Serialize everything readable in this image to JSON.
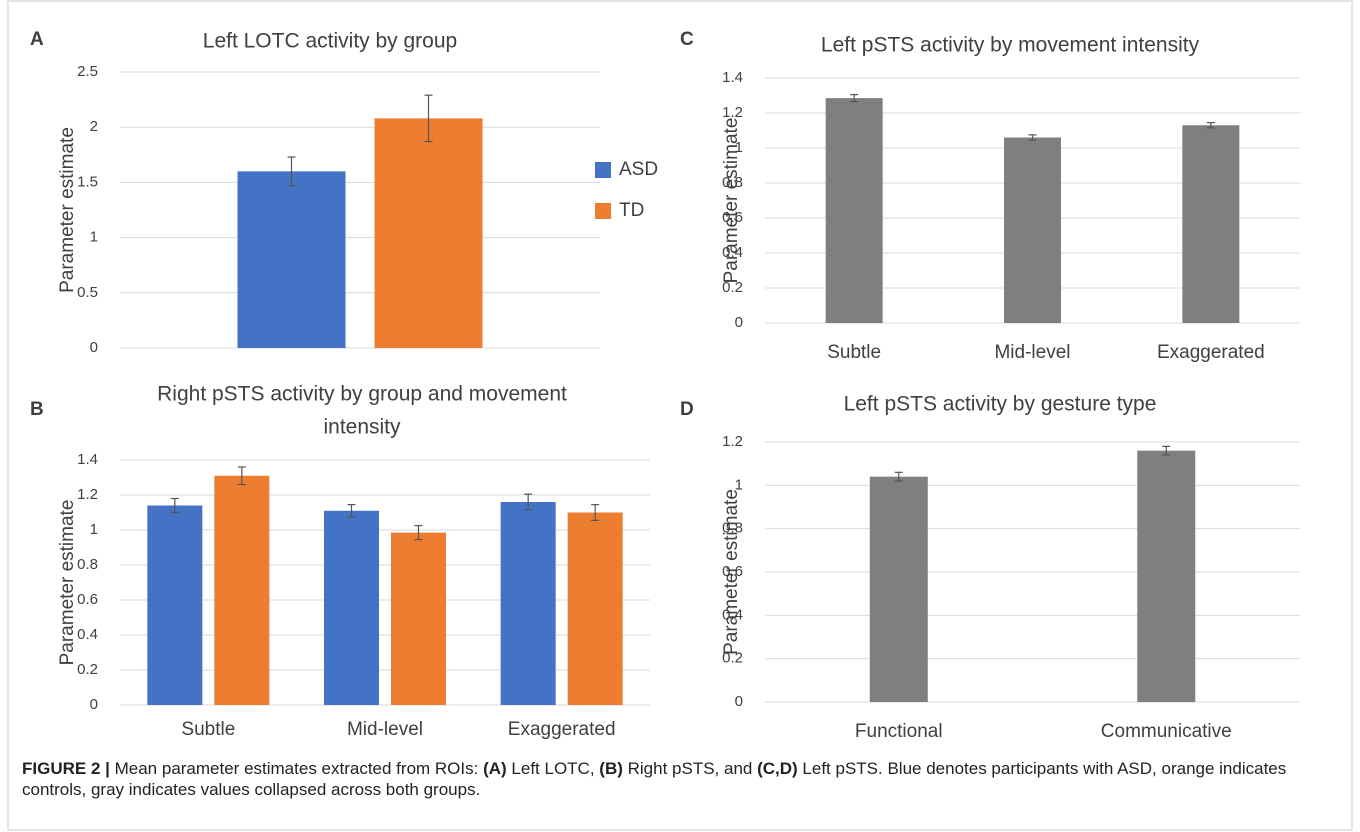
{
  "chart_data": [
    {
      "type": "bar",
      "panel": "A",
      "title": "Left LOTC activity by group",
      "ylabel": "Parameter estimate",
      "categories": [
        null
      ],
      "series": [
        {
          "name": "ASD",
          "color": "#4472c4",
          "values": [
            1.6
          ],
          "errors": [
            0.13
          ]
        },
        {
          "name": "TD",
          "color": "#ed7d31",
          "values": [
            2.08
          ],
          "errors": [
            0.21
          ]
        }
      ],
      "ylim": [
        0,
        2.5
      ],
      "yticks": [
        0,
        0.5,
        1,
        1.5,
        2,
        2.5
      ],
      "grid": true,
      "legend": "right"
    },
    {
      "type": "bar",
      "panel": "B",
      "title": [
        "Right pSTS activity by group and movement",
        "intensity"
      ],
      "ylabel": "Parameter estimate",
      "categories": [
        "Subtle",
        "Mid-level",
        "Exaggerated"
      ],
      "series": [
        {
          "color": "#4472c4",
          "values": [
            1.14,
            1.11,
            1.16
          ],
          "errors": [
            0.04,
            0.035,
            0.045
          ]
        },
        {
          "color": "#ed7d31",
          "values": [
            1.31,
            0.985,
            1.1
          ],
          "errors": [
            0.05,
            0.04,
            0.045
          ]
        }
      ],
      "ylim": [
        0,
        1.4
      ],
      "yticks": [
        0,
        0.2,
        0.4,
        0.6,
        0.8,
        1,
        1.2,
        1.4
      ],
      "grid": true
    },
    {
      "type": "bar",
      "panel": "C",
      "title": "Left pSTS activity by movement intensity",
      "ylabel": "Parameter estimate",
      "categories": [
        "Subtle",
        "Mid-level",
        "Exaggerated"
      ],
      "series": [
        {
          "color": "#7f7f7f",
          "values": [
            1.285,
            1.06,
            1.13
          ],
          "errors": [
            0.02,
            0.015,
            0.015
          ]
        }
      ],
      "ylim": [
        0,
        1.4
      ],
      "yticks": [
        0,
        0.2,
        0.4,
        0.6,
        0.8,
        1,
        1.2,
        1.4
      ],
      "grid": true
    },
    {
      "type": "bar",
      "panel": "D",
      "title": "Left pSTS activity by gesture type",
      "ylabel": "Parameter estimate",
      "categories": [
        "Functional",
        "Communicative"
      ],
      "series": [
        {
          "color": "#7f7f7f",
          "values": [
            1.04,
            1.16
          ],
          "errors": [
            0.02,
            0.02
          ]
        }
      ],
      "ylim": [
        0,
        1.2
      ],
      "yticks": [
        0,
        0.2,
        0.4,
        0.6,
        0.8,
        1,
        1.2
      ],
      "grid": true
    }
  ],
  "caption": [
    {
      "text": "FIGURE 2 |",
      "bold": true
    },
    {
      "text": " Mean parameter estimates extracted from ROIs: ",
      "bold": false
    },
    {
      "text": "(A)",
      "bold": true
    },
    {
      "text": " Left LOTC, ",
      "bold": false
    },
    {
      "text": "(B)",
      "bold": true
    },
    {
      "text": " Right pSTS, and ",
      "bold": false
    },
    {
      "text": "(C,D)",
      "bold": true
    },
    {
      "text": " Left pSTS. Blue denotes participants with ASD, orange indicates controls, gray indicates values collapsed across both groups.",
      "bold": false
    }
  ]
}
